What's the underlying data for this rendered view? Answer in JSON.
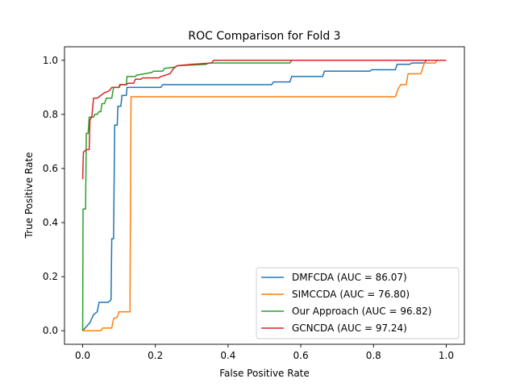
{
  "chart_data": {
    "type": "line",
    "title": "ROC Comparison for Fold 3",
    "xlabel": "False Positive Rate",
    "ylabel": "True Positive Rate",
    "xlim": [
      -0.05,
      1.05
    ],
    "ylim": [
      -0.05,
      1.05
    ],
    "xticks": [
      "0.0",
      "0.2",
      "0.4",
      "0.6",
      "0.8",
      "1.0"
    ],
    "yticks": [
      "0.0",
      "0.2",
      "0.4",
      "0.6",
      "0.8",
      "1.0"
    ],
    "grid": false,
    "legend_position": "lower-right",
    "series": [
      {
        "name": "DMFCDA (AUC = 86.07)",
        "color": "#1f77b4",
        "points": [
          [
            0.0,
            0.0
          ],
          [
            0.02,
            0.03
          ],
          [
            0.03,
            0.06
          ],
          [
            0.04,
            0.07
          ],
          [
            0.045,
            0.105
          ],
          [
            0.07,
            0.105
          ],
          [
            0.075,
            0.11
          ],
          [
            0.078,
            0.115
          ],
          [
            0.08,
            0.34
          ],
          [
            0.085,
            0.34
          ],
          [
            0.088,
            0.76
          ],
          [
            0.095,
            0.76
          ],
          [
            0.097,
            0.83
          ],
          [
            0.105,
            0.83
          ],
          [
            0.108,
            0.87
          ],
          [
            0.12,
            0.87
          ],
          [
            0.122,
            0.9
          ],
          [
            0.215,
            0.9
          ],
          [
            0.22,
            0.91
          ],
          [
            0.52,
            0.91
          ],
          [
            0.525,
            0.92
          ],
          [
            0.57,
            0.92
          ],
          [
            0.575,
            0.94
          ],
          [
            0.66,
            0.94
          ],
          [
            0.665,
            0.96
          ],
          [
            0.79,
            0.96
          ],
          [
            0.795,
            0.965
          ],
          [
            0.86,
            0.965
          ],
          [
            0.865,
            0.985
          ],
          [
            0.9,
            0.985
          ],
          [
            0.905,
            0.99
          ],
          [
            0.94,
            0.99
          ],
          [
            0.945,
            1.0
          ],
          [
            1.0,
            1.0
          ]
        ]
      },
      {
        "name": "SIMCCDA (AUC = 76.80)",
        "color": "#ff7f0e",
        "points": [
          [
            0.0,
            0.0
          ],
          [
            0.05,
            0.0
          ],
          [
            0.055,
            0.01
          ],
          [
            0.08,
            0.01
          ],
          [
            0.085,
            0.045
          ],
          [
            0.095,
            0.05
          ],
          [
            0.1,
            0.07
          ],
          [
            0.13,
            0.07
          ],
          [
            0.133,
            0.865
          ],
          [
            0.86,
            0.865
          ],
          [
            0.865,
            0.885
          ],
          [
            0.87,
            0.9
          ],
          [
            0.875,
            0.91
          ],
          [
            0.89,
            0.91
          ],
          [
            0.895,
            0.95
          ],
          [
            0.93,
            0.95
          ],
          [
            0.935,
            0.97
          ],
          [
            0.94,
            0.99
          ],
          [
            0.97,
            0.99
          ],
          [
            0.975,
            1.0
          ],
          [
            1.0,
            1.0
          ]
        ]
      },
      {
        "name": "Our Approach (AUC = 96.82)",
        "color": "#2ca02c",
        "points": [
          [
            0.0,
            0.0
          ],
          [
            0.001,
            0.45
          ],
          [
            0.008,
            0.45
          ],
          [
            0.01,
            0.73
          ],
          [
            0.015,
            0.73
          ],
          [
            0.018,
            0.79
          ],
          [
            0.03,
            0.79
          ],
          [
            0.033,
            0.8
          ],
          [
            0.04,
            0.8
          ],
          [
            0.045,
            0.81
          ],
          [
            0.05,
            0.81
          ],
          [
            0.053,
            0.84
          ],
          [
            0.06,
            0.84
          ],
          [
            0.065,
            0.86
          ],
          [
            0.08,
            0.86
          ],
          [
            0.085,
            0.9
          ],
          [
            0.1,
            0.9
          ],
          [
            0.105,
            0.91
          ],
          [
            0.12,
            0.91
          ],
          [
            0.122,
            0.94
          ],
          [
            0.145,
            0.94
          ],
          [
            0.148,
            0.945
          ],
          [
            0.17,
            0.95
          ],
          [
            0.19,
            0.955
          ],
          [
            0.195,
            0.96
          ],
          [
            0.22,
            0.96
          ],
          [
            0.225,
            0.97
          ],
          [
            0.255,
            0.975
          ],
          [
            0.26,
            0.98
          ],
          [
            0.34,
            0.985
          ],
          [
            0.345,
            0.99
          ],
          [
            0.57,
            0.99
          ],
          [
            0.575,
            1.0
          ],
          [
            1.0,
            1.0
          ]
        ]
      },
      {
        "name": "GCNCDA (AUC = 97.24)",
        "color": "#d62728",
        "points": [
          [
            0.0,
            0.56
          ],
          [
            0.002,
            0.66
          ],
          [
            0.01,
            0.67
          ],
          [
            0.018,
            0.67
          ],
          [
            0.02,
            0.78
          ],
          [
            0.025,
            0.79
          ],
          [
            0.03,
            0.86
          ],
          [
            0.04,
            0.86
          ],
          [
            0.05,
            0.87
          ],
          [
            0.06,
            0.88
          ],
          [
            0.07,
            0.885
          ],
          [
            0.075,
            0.89
          ],
          [
            0.08,
            0.9
          ],
          [
            0.1,
            0.9
          ],
          [
            0.102,
            0.91
          ],
          [
            0.12,
            0.91
          ],
          [
            0.125,
            0.915
          ],
          [
            0.14,
            0.915
          ],
          [
            0.145,
            0.93
          ],
          [
            0.16,
            0.93
          ],
          [
            0.165,
            0.935
          ],
          [
            0.21,
            0.935
          ],
          [
            0.215,
            0.94
          ],
          [
            0.24,
            0.95
          ],
          [
            0.25,
            0.97
          ],
          [
            0.26,
            0.98
          ],
          [
            0.3,
            0.985
          ],
          [
            0.355,
            0.99
          ],
          [
            0.36,
            1.0
          ],
          [
            1.0,
            1.0
          ]
        ]
      }
    ]
  }
}
